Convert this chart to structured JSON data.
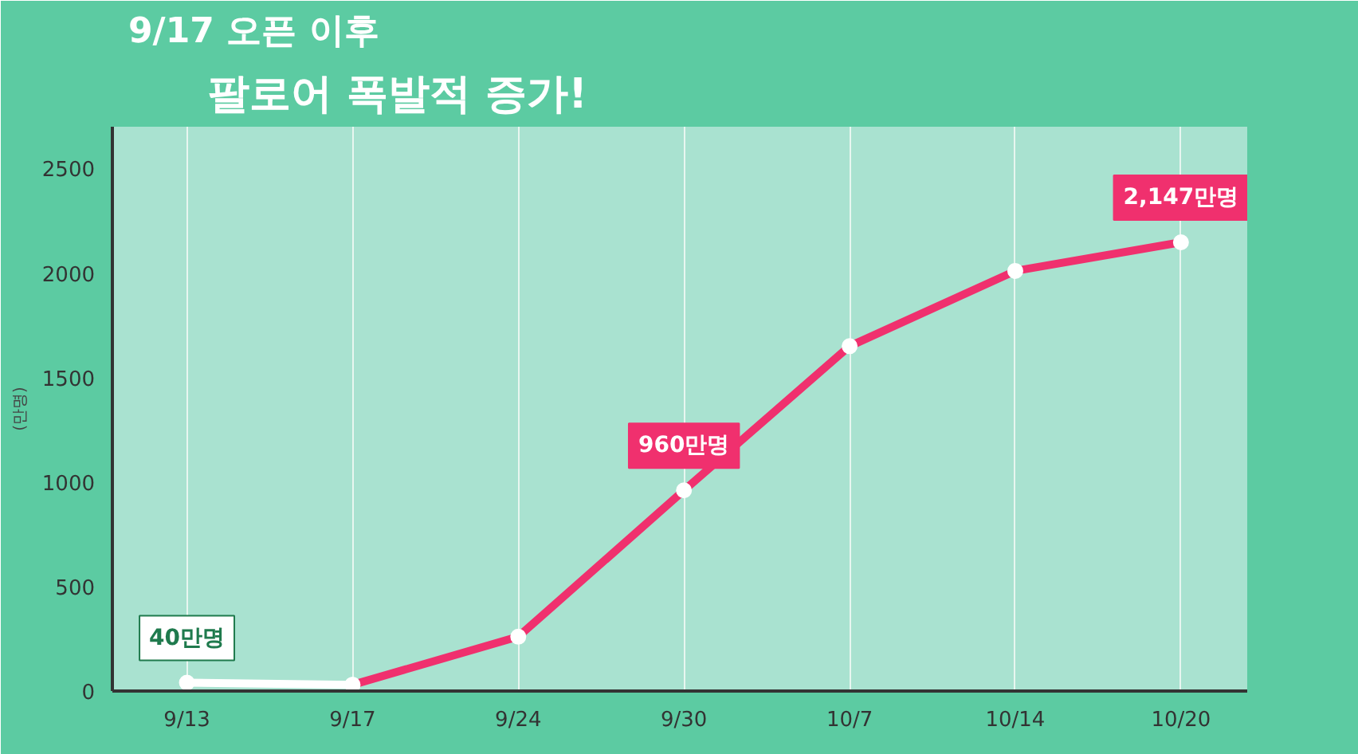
{
  "chart_data": {
    "type": "line",
    "title": "9/17 오픈 이후",
    "subtitle": "팔로어 폭발적 증가!",
    "ylabel": "(만명)",
    "categories": [
      "9/13",
      "9/17",
      "9/24",
      "9/30",
      "10/7",
      "10/14",
      "10/20"
    ],
    "series": [
      {
        "color": "#ffffff",
        "values": [
          40,
          30,
          null,
          null,
          null,
          null,
          null
        ],
        "value_labels": [
          "40만명",
          null,
          null,
          null,
          null,
          null,
          null
        ]
      },
      {
        "color": "#f0306e",
        "values": [
          null,
          30,
          260,
          960,
          1650,
          2010,
          2147
        ],
        "value_labels": [
          null,
          null,
          null,
          "960만명",
          null,
          null,
          "2,147만명"
        ]
      }
    ],
    "ylim": [
      0,
      2700
    ],
    "yticks": [
      0,
      500,
      1000,
      1500,
      2000,
      2500
    ],
    "grid": "x",
    "marker": "circle",
    "line_style": "solid"
  }
}
